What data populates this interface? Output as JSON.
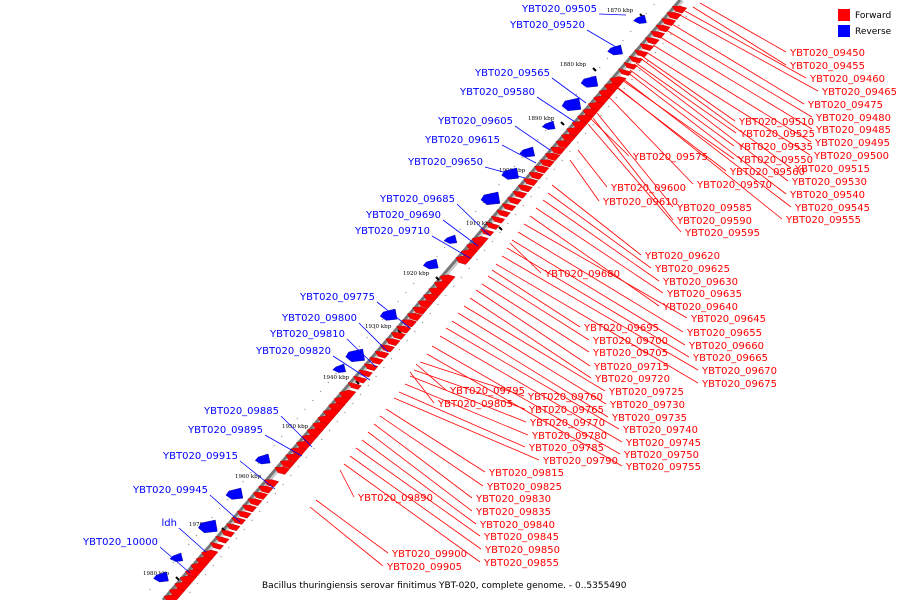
{
  "legend": {
    "forward": {
      "label": "Forward",
      "color": "#ff0000"
    },
    "reverse": {
      "label": "Reverse",
      "color": "#0000ff"
    }
  },
  "caption": "Bacillus thuringiensis serovar finitimus YBT-020, complete genome. - 0..5355490",
  "axis": {
    "tick_labels": [
      "1870 kbp",
      "1880 kbp",
      "1890 kbp",
      "1900 kbp",
      "1910 kbp",
      "1920 kbp",
      "1930 kbp",
      "1940 kbp",
      "1950 kbp",
      "1960 kbp",
      "1970 kbp",
      "1980 kbp"
    ]
  },
  "reverse_genes": [
    "YBT020_09505",
    "YBT020_09520",
    "YBT020_09565",
    "YBT020_09580",
    "YBT020_09605",
    "YBT020_09615",
    "YBT020_09650",
    "YBT020_09685",
    "YBT020_09690",
    "YBT020_09710",
    "YBT020_09775",
    "YBT020_09800",
    "YBT020_09810",
    "YBT020_09820",
    "YBT020_09885",
    "YBT020_09895",
    "YBT020_09915",
    "YBT020_09945",
    "ldh",
    "YBT020_10000"
  ],
  "forward_genes_top": [
    "YBT020_09450",
    "YBT020_09455",
    "YBT020_09460",
    "YBT020_09465",
    "YBT020_09475",
    "YBT020_09480",
    "YBT020_09485",
    "YBT020_09495",
    "YBT020_09500",
    "YBT020_09515",
    "YBT020_09530",
    "YBT020_09540",
    "YBT020_09545",
    "YBT020_09555"
  ],
  "forward_genes_mid": [
    "YBT020_09510",
    "YBT020_09525",
    "YBT020_09535",
    "YBT020_09550",
    "YBT020_09560",
    "YBT020_09570",
    "YBT020_09575",
    "YBT020_09585",
    "YBT020_09590",
    "YBT020_09595",
    "YBT020_09600",
    "YBT020_09610"
  ],
  "forward_genes_block2": [
    "YBT020_09620",
    "YBT020_09625",
    "YBT020_09630",
    "YBT020_09635",
    "YBT020_09640",
    "YBT020_09645",
    "YBT020_09655",
    "YBT020_09660",
    "YBT020_09665",
    "YBT020_09670",
    "YBT020_09675",
    "YBT020_09680"
  ],
  "forward_genes_block3": [
    "YBT020_09695",
    "YBT020_09700",
    "YBT020_09705",
    "YBT020_09715",
    "YBT020_09720",
    "YBT020_09725",
    "YBT020_09730",
    "YBT020_09735",
    "YBT020_09740",
    "YBT020_09745",
    "YBT020_09750",
    "YBT020_09755",
    "YBT020_09760",
    "YBT020_09765",
    "YBT020_09770",
    "YBT020_09780",
    "YBT020_09785",
    "YBT020_09790",
    "YBT020_09795",
    "YBT020_09805"
  ],
  "forward_genes_block4": [
    "YBT020_09815",
    "YBT020_09825",
    "YBT020_09830",
    "YBT020_09835",
    "YBT020_09840",
    "YBT020_09845",
    "YBT020_09850",
    "YBT020_09855",
    "YBT020_09890",
    "YBT020_09900",
    "YBT020_09905"
  ]
}
